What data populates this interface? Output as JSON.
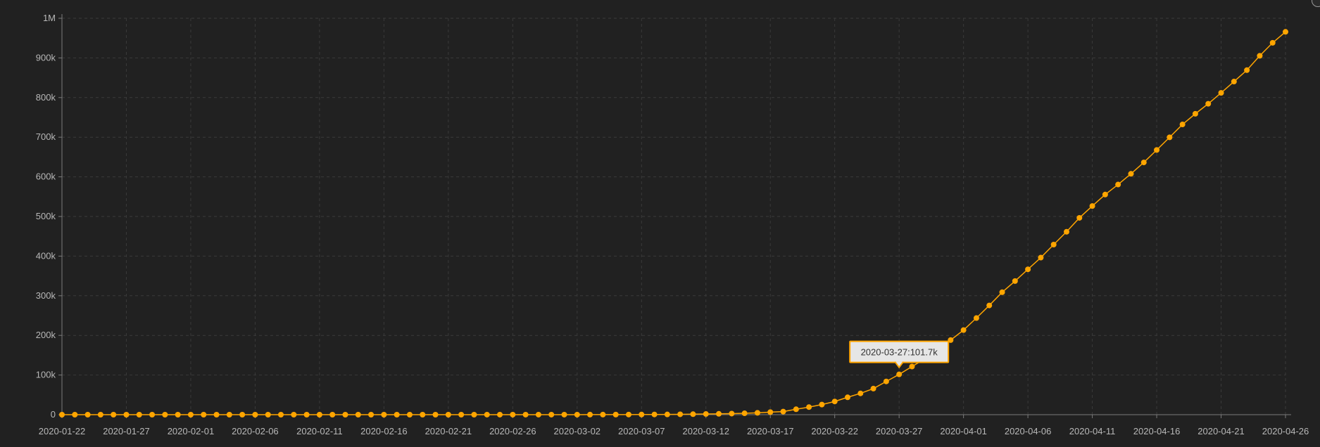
{
  "chart_data": {
    "type": "line",
    "x_start": "2020-01-22",
    "x": [
      "2020-01-22",
      "2020-01-23",
      "2020-01-24",
      "2020-01-25",
      "2020-01-26",
      "2020-01-27",
      "2020-01-28",
      "2020-01-29",
      "2020-01-30",
      "2020-01-31",
      "2020-02-01",
      "2020-02-02",
      "2020-02-03",
      "2020-02-04",
      "2020-02-05",
      "2020-02-06",
      "2020-02-07",
      "2020-02-08",
      "2020-02-09",
      "2020-02-10",
      "2020-02-11",
      "2020-02-12",
      "2020-02-13",
      "2020-02-14",
      "2020-02-15",
      "2020-02-16",
      "2020-02-17",
      "2020-02-18",
      "2020-02-19",
      "2020-02-20",
      "2020-02-21",
      "2020-02-22",
      "2020-02-23",
      "2020-02-24",
      "2020-02-25",
      "2020-02-26",
      "2020-02-27",
      "2020-02-28",
      "2020-02-29",
      "2020-03-01",
      "2020-03-02",
      "2020-03-03",
      "2020-03-04",
      "2020-03-05",
      "2020-03-06",
      "2020-03-07",
      "2020-03-08",
      "2020-03-09",
      "2020-03-10",
      "2020-03-11",
      "2020-03-12",
      "2020-03-13",
      "2020-03-14",
      "2020-03-15",
      "2020-03-16",
      "2020-03-17",
      "2020-03-18",
      "2020-03-19",
      "2020-03-20",
      "2020-03-21",
      "2020-03-22",
      "2020-03-23",
      "2020-03-24",
      "2020-03-25",
      "2020-03-26",
      "2020-03-27",
      "2020-03-28",
      "2020-03-29",
      "2020-03-30",
      "2020-03-31",
      "2020-04-01",
      "2020-04-02",
      "2020-04-03",
      "2020-04-04",
      "2020-04-05",
      "2020-04-06",
      "2020-04-07",
      "2020-04-08",
      "2020-04-09",
      "2020-04-10",
      "2020-04-11",
      "2020-04-12",
      "2020-04-13",
      "2020-04-14",
      "2020-04-15",
      "2020-04-16",
      "2020-04-17",
      "2020-04-18",
      "2020-04-19",
      "2020-04-20",
      "2020-04-21",
      "2020-04-22",
      "2020-04-23",
      "2020-04-24",
      "2020-04-25",
      "2020-04-26"
    ],
    "series": [
      {
        "color": "#ffa500",
        "values": [
          1,
          1,
          2,
          2,
          5,
          5,
          5,
          5,
          5,
          7,
          8,
          8,
          11,
          11,
          11,
          11,
          11,
          11,
          11,
          11,
          12,
          12,
          13,
          13,
          13,
          13,
          13,
          13,
          13,
          13,
          15,
          15,
          15,
          51,
          51,
          57,
          58,
          60,
          68,
          74,
          98,
          118,
          149,
          217,
          262,
          402,
          518,
          583,
          959,
          1281,
          1663,
          2179,
          2727,
          3499,
          4632,
          6421,
          7786,
          13680,
          19101,
          25493,
          33276,
          43847,
          53740,
          65778,
          83836,
          101657,
          121478,
          140886,
          161807,
          188172,
          213372,
          243762,
          275586,
          308853,
          337072,
          366667,
          396223,
          429052,
          461437,
          496535,
          526396,
          555313,
          580619,
          607670,
          636350,
          667801,
          699706,
          732197,
          759086,
          784326,
          811865,
          840351,
          869170,
          905358,
          938154,
          965785
        ]
      }
    ],
    "x_ticks": [
      "2020-01-22",
      "2020-01-27",
      "2020-02-01",
      "2020-02-06",
      "2020-02-11",
      "2020-02-16",
      "2020-02-21",
      "2020-02-26",
      "2020-03-02",
      "2020-03-07",
      "2020-03-12",
      "2020-03-17",
      "2020-03-22",
      "2020-03-27",
      "2020-04-01",
      "2020-04-06",
      "2020-04-11",
      "2020-04-16",
      "2020-04-21",
      "2020-04-26"
    ],
    "y_ticks": [
      {
        "value": 0,
        "label": "0"
      },
      {
        "value": 100000,
        "label": "100k"
      },
      {
        "value": 200000,
        "label": "200k"
      },
      {
        "value": 300000,
        "label": "300k"
      },
      {
        "value": 400000,
        "label": "400k"
      },
      {
        "value": 500000,
        "label": "500k"
      },
      {
        "value": 600000,
        "label": "600k"
      },
      {
        "value": 700000,
        "label": "700k"
      },
      {
        "value": 800000,
        "label": "800k"
      },
      {
        "value": 900000,
        "label": "900k"
      },
      {
        "value": 1000000,
        "label": "1M"
      }
    ],
    "ylim": [
      0,
      1000000
    ],
    "grid": true,
    "title": "",
    "xlabel": "",
    "ylabel": "",
    "tooltip": {
      "date": "2020-03-27",
      "value_label": "101.7k",
      "text": "2020-03-27:101.7k"
    }
  },
  "colors": {
    "background": "#212121",
    "series": "#ffa500",
    "grid": "#3a3a3a",
    "text": "#b8b8b8"
  },
  "icons": {
    "corner": "circle-icon"
  }
}
